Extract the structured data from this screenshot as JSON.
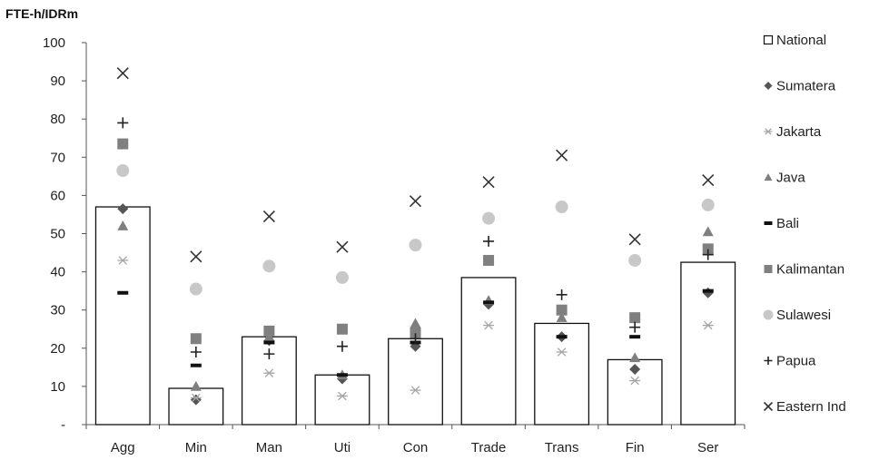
{
  "chart_data": {
    "type": "bar",
    "ylabel": "FTE-h/IDRm",
    "xlabel": "",
    "ylim": [
      0,
      100
    ],
    "yticks": [
      0,
      10,
      20,
      30,
      40,
      50,
      60,
      70,
      80,
      90,
      100
    ],
    "ytick_labels": [
      "-",
      "10",
      "20",
      "30",
      "40",
      "50",
      "60",
      "70",
      "80",
      "90",
      "100"
    ],
    "categories": [
      "Agg",
      "Min",
      "Man",
      "Uti",
      "Con",
      "Trade",
      "Trans",
      "Fin",
      "Ser"
    ],
    "grid": false,
    "legend_position": "right",
    "series": [
      {
        "name": "National",
        "kind": "bar",
        "marker": "bar",
        "color": "#ffffff",
        "values": [
          57,
          9.5,
          23,
          13,
          22.5,
          38.5,
          26.5,
          17,
          42.5
        ]
      },
      {
        "name": "Sumatera",
        "kind": "marker",
        "marker": "diamond",
        "color": "#555555",
        "values": [
          56.5,
          6.5,
          22,
          12,
          20.5,
          31.5,
          23,
          14.5,
          34.5
        ]
      },
      {
        "name": "Jakarta",
        "kind": "marker",
        "marker": "asterisk",
        "color": "#a6a6a6",
        "values": [
          43,
          7,
          13.5,
          7.5,
          9,
          26,
          19,
          11.5,
          26
        ]
      },
      {
        "name": "Java",
        "kind": "marker",
        "marker": "triangle",
        "color": "#7f7f7f",
        "values": [
          52,
          10,
          23,
          13,
          26.5,
          32.5,
          28,
          17.5,
          50.5
        ]
      },
      {
        "name": "Bali",
        "kind": "marker",
        "marker": "dash",
        "color": "#111111",
        "values": [
          34.5,
          15.5,
          21.5,
          13,
          21.5,
          32,
          23,
          23,
          35
        ]
      },
      {
        "name": "Kalimantan",
        "kind": "marker",
        "marker": "square",
        "color": "#808080",
        "values": [
          73.5,
          22.5,
          24.5,
          25,
          24,
          43,
          30,
          28,
          46
        ]
      },
      {
        "name": "Sulawesi",
        "kind": "marker",
        "marker": "circle",
        "color": "#c8c8c8",
        "values": [
          66.5,
          35.5,
          41.5,
          38.5,
          47,
          54,
          57,
          43,
          57.5
        ]
      },
      {
        "name": "Papua",
        "kind": "marker",
        "marker": "plus",
        "color": "#222222",
        "values": [
          79,
          19,
          18.5,
          20.5,
          22.5,
          48,
          34,
          25.5,
          44.5
        ]
      },
      {
        "name": "Eastern Ind",
        "kind": "marker",
        "marker": "x",
        "color": "#333333",
        "values": [
          92,
          44,
          54.5,
          46.5,
          58.5,
          63.5,
          70.5,
          48.5,
          64
        ]
      }
    ]
  }
}
